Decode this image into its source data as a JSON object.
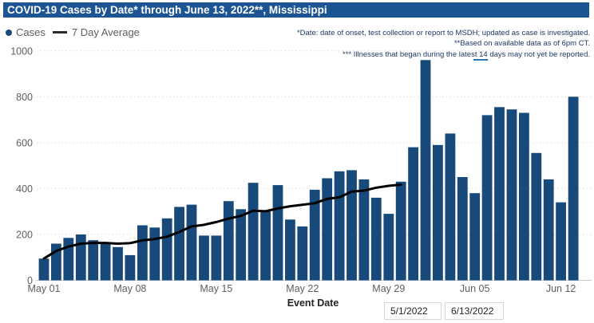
{
  "title": {
    "text": "COVID-19 Cases by Date* through June 13, 2022**, Mississippi"
  },
  "legend": {
    "cases_label": "Cases",
    "avg_label": "7 Day Average"
  },
  "annotations": [
    "*Date: date of onset, test collection or report to MSDH; updated as case is investigated.",
    "**Based on available data as of 6pm CT.",
    "*** Illnesses that began during the latest 14 days may not yet be reported."
  ],
  "date_inputs": {
    "start": "5/1/2022",
    "end": "6/13/2022"
  },
  "colors": {
    "title_bar": "#1d5493",
    "bar": "#17497b",
    "line": "#000000",
    "axis_text": "#605e5c",
    "annotation_text": "#1f3864"
  },
  "chart_data": {
    "type": "bar",
    "title": "COVID-19 Cases by Date* through June 13, 2022**, Mississippi",
    "xlabel": "Event Date",
    "ylabel": "",
    "ylim": [
      0,
      1000
    ],
    "yticks": [
      0,
      200,
      400,
      600,
      800,
      1000
    ],
    "grid": "dotted-horizontal",
    "legend_position": "top-left",
    "categories": [
      "May 01",
      "May 02",
      "May 03",
      "May 04",
      "May 05",
      "May 06",
      "May 07",
      "May 08",
      "May 09",
      "May 10",
      "May 11",
      "May 12",
      "May 13",
      "May 14",
      "May 15",
      "May 16",
      "May 17",
      "May 18",
      "May 19",
      "May 20",
      "May 21",
      "May 22",
      "May 23",
      "May 24",
      "May 25",
      "May 26",
      "May 27",
      "May 28",
      "May 29",
      "May 30",
      "May 31",
      "Jun 01",
      "Jun 02",
      "Jun 03",
      "Jun 04",
      "Jun 05",
      "Jun 06",
      "Jun 07",
      "Jun 08",
      "Jun 09",
      "Jun 10",
      "Jun 11",
      "Jun 12",
      "Jun 13"
    ],
    "x_tick_positions": [
      0,
      7,
      14,
      21,
      28,
      35,
      42
    ],
    "x_tick_labels": [
      "May 01",
      "May 08",
      "May 15",
      "May 22",
      "May 29",
      "Jun 05",
      "Jun 12"
    ],
    "series": [
      {
        "name": "Cases",
        "type": "bar",
        "values": [
          95,
          160,
          185,
          200,
          175,
          160,
          145,
          110,
          240,
          230,
          270,
          320,
          330,
          195,
          195,
          345,
          310,
          425,
          305,
          415,
          265,
          235,
          395,
          445,
          475,
          480,
          440,
          360,
          290,
          430,
          580,
          960,
          590,
          640,
          450,
          380,
          720,
          755,
          745,
          730,
          555,
          440,
          340,
          800
        ]
      },
      {
        "name": "7 Day Average",
        "type": "line",
        "values": [
          95,
          128,
          147,
          160,
          163,
          163,
          160,
          162,
          174,
          180,
          190,
          211,
          235,
          242,
          254,
          269,
          281,
          303,
          301,
          313,
          323,
          329,
          336,
          355,
          362,
          387,
          391,
          404,
          412,
          417,
          null,
          null,
          null,
          null,
          null,
          null,
          null,
          null,
          null,
          null,
          null,
          null,
          null,
          null
        ]
      }
    ]
  }
}
